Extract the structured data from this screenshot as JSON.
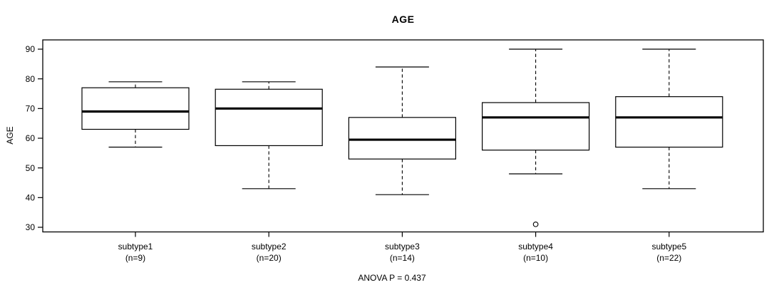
{
  "chart_data": {
    "type": "boxplot",
    "title": "AGE",
    "ylabel": "AGE",
    "xlabel": "",
    "annotation": "ANOVA P = 0.437",
    "ylim": [
      28.4,
      93.1
    ],
    "yticks": [
      30,
      40,
      50,
      60,
      70,
      80,
      90
    ],
    "grid": "off",
    "colors": {
      "line": "#000000",
      "box_fill": "#ffffff",
      "background": "#ffffff"
    },
    "groups": [
      {
        "label": "subtype1",
        "n_label": "(n=9)",
        "n": 9,
        "whisker_low": 57,
        "q1": 63,
        "median": 69,
        "q3": 77,
        "whisker_high": 79,
        "outliers": []
      },
      {
        "label": "subtype2",
        "n_label": "(n=20)",
        "n": 20,
        "whisker_low": 43,
        "q1": 57.5,
        "median": 70,
        "q3": 76.5,
        "whisker_high": 79,
        "outliers": []
      },
      {
        "label": "subtype3",
        "n_label": "(n=14)",
        "n": 14,
        "whisker_low": 41,
        "q1": 53,
        "median": 59.5,
        "q3": 67,
        "whisker_high": 84,
        "outliers": []
      },
      {
        "label": "subtype4",
        "n_label": "(n=10)",
        "n": 10,
        "whisker_low": 48,
        "q1": 56,
        "median": 67,
        "q3": 72,
        "whisker_high": 90,
        "outliers": [
          31
        ]
      },
      {
        "label": "subtype5",
        "n_label": "(n=22)",
        "n": 22,
        "whisker_low": 43,
        "q1": 57,
        "median": 67,
        "q3": 74,
        "whisker_high": 90,
        "outliers": []
      }
    ]
  }
}
